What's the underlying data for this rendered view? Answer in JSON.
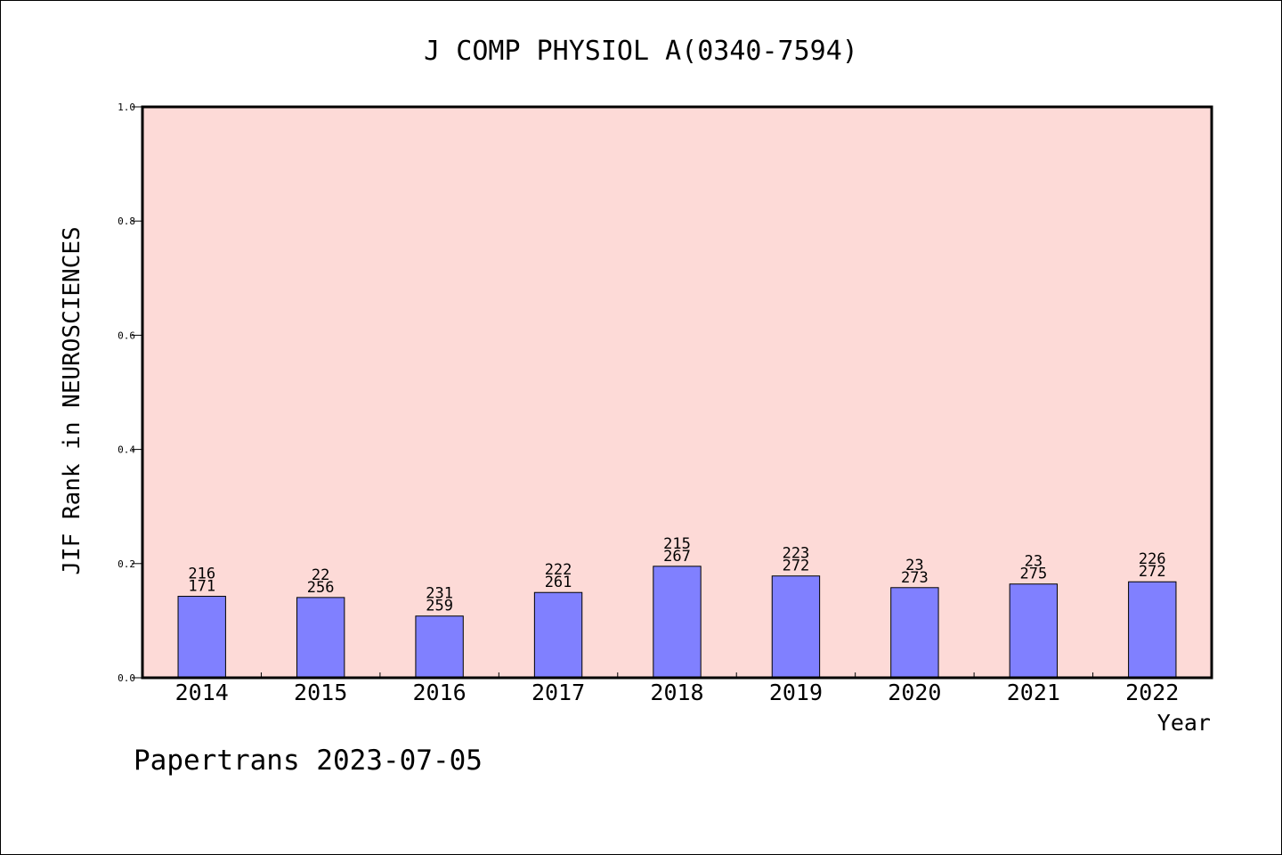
{
  "chart_data": {
    "type": "bar",
    "title": "J COMP PHYSIOL A(0340-7594)",
    "xlabel": "Year",
    "ylabel": "JIF Rank in NEUROSCIENCES",
    "categories": [
      "2014",
      "2015",
      "2016",
      "2017",
      "2018",
      "2019",
      "2020",
      "2021",
      "2022"
    ],
    "values": [
      0.1427,
      0.1406,
      0.1081,
      0.1494,
      0.1953,
      0.1783,
      0.1579,
      0.1642,
      0.1681
    ],
    "labels_top": [
      "216",
      "22",
      "231",
      "222",
      "215",
      "223",
      "23",
      "23",
      "226"
    ],
    "labels_bottom": [
      "171",
      "256",
      "259",
      "261",
      "267",
      "272",
      "273",
      "275",
      "272"
    ],
    "yticks": [
      "0.0",
      "0.2",
      "0.4",
      "0.6",
      "0.8",
      "1.0"
    ],
    "ylim": [
      0,
      1
    ],
    "grid": false,
    "colors": {
      "plot_background": "#fddad7",
      "bar_fill": "#8080ff",
      "bar_stroke": "#000000",
      "axis": "#000000"
    }
  },
  "footer": {
    "credit": "Papertrans 2023-07-05"
  }
}
